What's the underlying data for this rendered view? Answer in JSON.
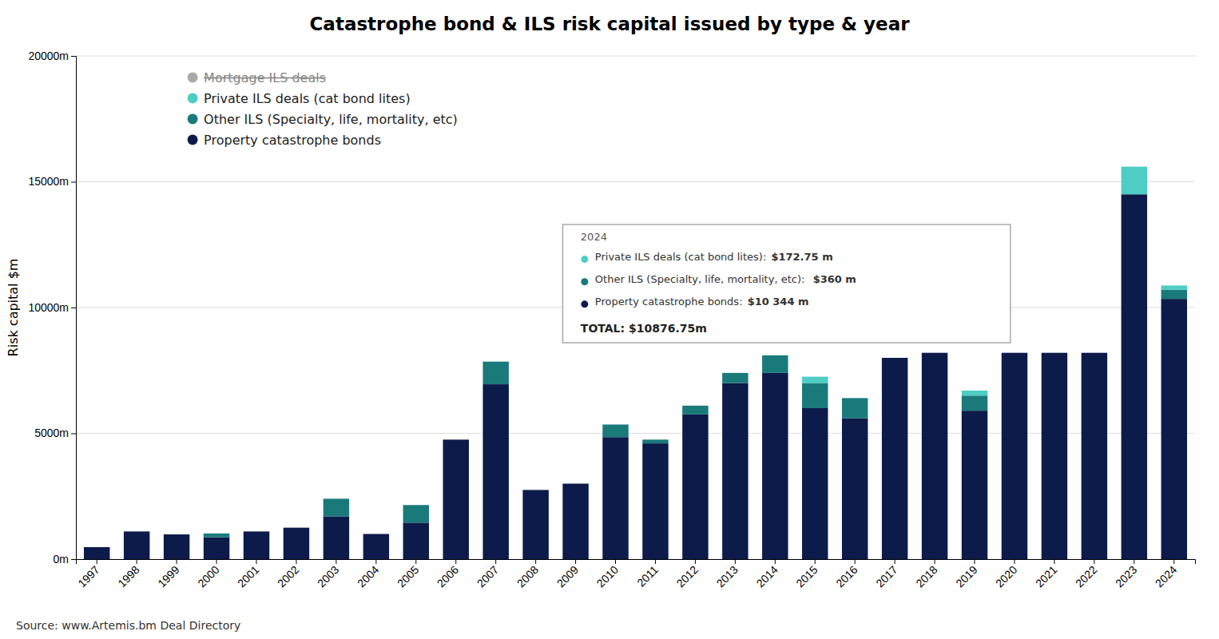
{
  "chart_data": {
    "type": "bar",
    "stacked": true,
    "title": "Catastrophe bond & ILS risk capital issued by type & year",
    "ylabel": "Risk capital $m",
    "source": "Source: www.Artemis.bm Deal Directory",
    "categories": [
      "1997",
      "1998",
      "1999",
      "2000",
      "2001",
      "2002",
      "2003",
      "2004",
      "2005",
      "2006",
      "2007",
      "2008",
      "2009",
      "2010",
      "2011",
      "2012",
      "2013",
      "2014",
      "2015",
      "2016",
      "2017",
      "2018",
      "2019",
      "2020",
      "2021",
      "2022",
      "2023",
      "2024"
    ],
    "series": [
      {
        "name": "Property catastrophe bonds",
        "color": "#0d1b4b",
        "values": [
          477,
          1100,
          983,
          870,
          1100,
          1250,
          1700,
          1000,
          1450,
          4750,
          6950,
          2750,
          3000,
          4850,
          4600,
          5750,
          7000,
          7400,
          6000,
          5600,
          8000,
          8200,
          5900,
          8200,
          8200,
          8200,
          14500,
          10344
        ]
      },
      {
        "name": "Other ILS (Specialty, life, mortality, etc)",
        "color": "#1a7a7a",
        "values": [
          0,
          0,
          0,
          150,
          0,
          0,
          700,
          0,
          700,
          0,
          900,
          0,
          0,
          500,
          150,
          350,
          400,
          700,
          1000,
          800,
          0,
          0,
          600,
          0,
          0,
          0,
          0,
          360
        ]
      },
      {
        "name": "Private ILS deals (cat bond lites)",
        "color": "#4ecdc4",
        "values": [
          0,
          0,
          0,
          0,
          0,
          0,
          0,
          0,
          0,
          0,
          0,
          0,
          0,
          0,
          0,
          0,
          0,
          0,
          250,
          0,
          0,
          0,
          200,
          0,
          0,
          0,
          1100,
          172.75
        ]
      },
      {
        "name": "Mortgage ILS deals",
        "color": "#aaaaaa",
        "values": [
          0,
          0,
          0,
          0,
          0,
          0,
          0,
          0,
          0,
          0,
          0,
          0,
          0,
          0,
          0,
          0,
          0,
          0,
          0,
          0,
          0,
          0,
          0,
          0,
          0,
          0,
          0,
          0
        ]
      }
    ],
    "ylim": [
      0,
      20000
    ],
    "yticks": [
      {
        "value": 0,
        "label": "0m"
      },
      {
        "value": 5000,
        "label": "5000m"
      },
      {
        "value": 10000,
        "label": "10000m"
      },
      {
        "value": 15000,
        "label": "15000m"
      },
      {
        "value": 20000,
        "label": "20000m"
      }
    ],
    "grid": true,
    "legend": "upper left",
    "annotation": {
      "title": "2024",
      "items": [
        {
          "text": "Private ILS deals (cat bond lites): ",
          "value_text": "$172.75 m",
          "color": "#4ecdc4"
        },
        {
          "text": "Other ILS (Specialty, life, mortality, etc):  ",
          "value_text": "$360 m",
          "color": "#1a7a7a"
        },
        {
          "text": "Property catastrophe bonds: ",
          "value_text": "$10 344 m",
          "color": "#0d1b4b"
        }
      ],
      "total": "TOTAL: $10876.75m"
    }
  }
}
